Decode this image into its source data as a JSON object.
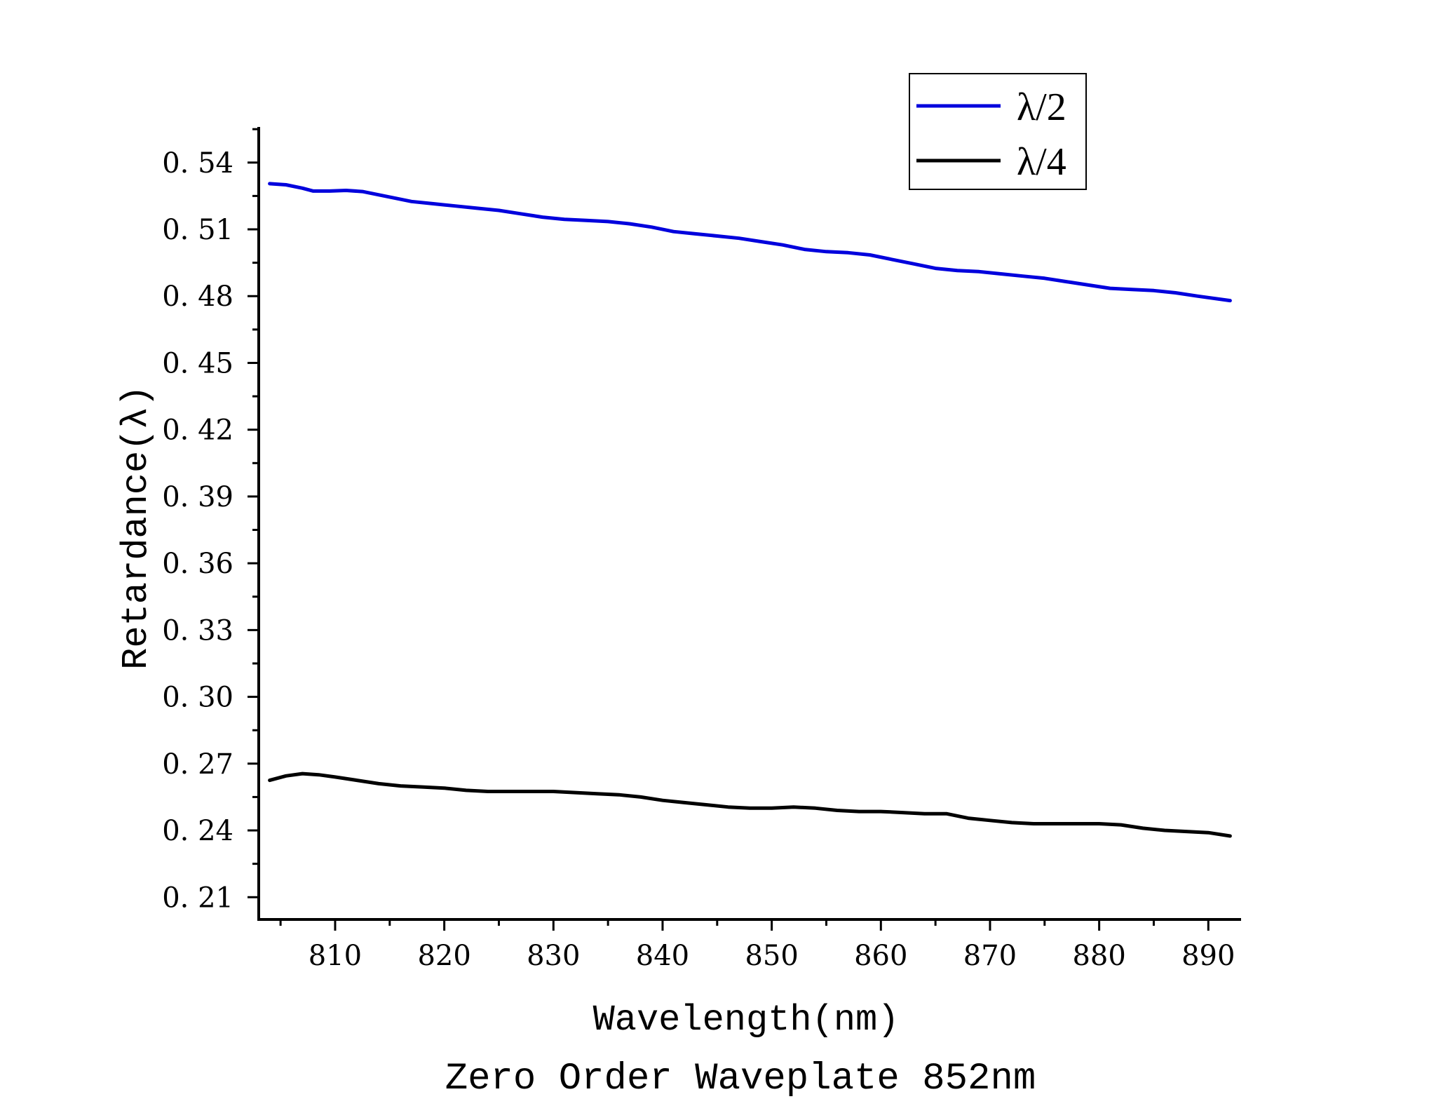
{
  "chart_data": {
    "type": "line",
    "title": "Zero Order Waveplate 852nm",
    "xlabel": "Wavelength(nm)",
    "ylabel": "Retardance(λ)",
    "xlim": [
      803,
      893
    ],
    "ylim": [
      0.2,
      0.556
    ],
    "x_ticks": [
      810,
      820,
      830,
      840,
      850,
      860,
      870,
      880,
      890
    ],
    "y_ticks": [
      0.21,
      0.24,
      0.27,
      0.3,
      0.33,
      0.36,
      0.39,
      0.42,
      0.45,
      0.48,
      0.51,
      0.54
    ],
    "y_tick_labels": [
      "0. 21",
      "0. 24",
      "0. 27",
      "0. 30",
      "0. 33",
      "0. 36",
      "0. 39",
      "0. 42",
      "0. 45",
      "0. 48",
      "0. 51",
      "0. 54"
    ],
    "legend_position": "top-right",
    "series": [
      {
        "name": "λ/2",
        "color": "#0000dd",
        "points": [
          [
            804,
            0.5305
          ],
          [
            805.5,
            0.53
          ],
          [
            807,
            0.5285
          ],
          [
            808,
            0.5272
          ],
          [
            809.5,
            0.5272
          ],
          [
            811,
            0.5275
          ],
          [
            812.5,
            0.527
          ],
          [
            814,
            0.5255
          ],
          [
            815.5,
            0.524
          ],
          [
            817,
            0.5225
          ],
          [
            819,
            0.5215
          ],
          [
            821,
            0.5205
          ],
          [
            823,
            0.5195
          ],
          [
            825,
            0.5185
          ],
          [
            827,
            0.517
          ],
          [
            829,
            0.5155
          ],
          [
            831,
            0.5145
          ],
          [
            833,
            0.514
          ],
          [
            835,
            0.5135
          ],
          [
            837,
            0.5125
          ],
          [
            839,
            0.511
          ],
          [
            841,
            0.509
          ],
          [
            843,
            0.508
          ],
          [
            845,
            0.507
          ],
          [
            847,
            0.506
          ],
          [
            849,
            0.5045
          ],
          [
            851,
            0.503
          ],
          [
            853,
            0.501
          ],
          [
            855,
            0.5
          ],
          [
            857,
            0.4995
          ],
          [
            859,
            0.4985
          ],
          [
            861,
            0.4965
          ],
          [
            863,
            0.4945
          ],
          [
            865,
            0.4925
          ],
          [
            867,
            0.4915
          ],
          [
            869,
            0.491
          ],
          [
            871,
            0.49
          ],
          [
            873,
            0.489
          ],
          [
            875,
            0.488
          ],
          [
            877,
            0.4865
          ],
          [
            879,
            0.485
          ],
          [
            881,
            0.4835
          ],
          [
            883,
            0.483
          ],
          [
            885,
            0.4825
          ],
          [
            887,
            0.4815
          ],
          [
            889,
            0.48
          ],
          [
            892,
            0.478
          ]
        ]
      },
      {
        "name": "λ/4",
        "color": "#000000",
        "points": [
          [
            804,
            0.2625
          ],
          [
            805.5,
            0.2645
          ],
          [
            807,
            0.2655
          ],
          [
            808.5,
            0.265
          ],
          [
            810,
            0.264
          ],
          [
            812,
            0.2625
          ],
          [
            814,
            0.261
          ],
          [
            816,
            0.26
          ],
          [
            818,
            0.2595
          ],
          [
            820,
            0.259
          ],
          [
            822,
            0.258
          ],
          [
            824,
            0.2575
          ],
          [
            826,
            0.2575
          ],
          [
            828,
            0.2575
          ],
          [
            830,
            0.2575
          ],
          [
            832,
            0.257
          ],
          [
            834,
            0.2565
          ],
          [
            836,
            0.256
          ],
          [
            838,
            0.255
          ],
          [
            840,
            0.2535
          ],
          [
            842,
            0.2525
          ],
          [
            844,
            0.2515
          ],
          [
            846,
            0.2505
          ],
          [
            848,
            0.25
          ],
          [
            850,
            0.25
          ],
          [
            852,
            0.2505
          ],
          [
            854,
            0.25
          ],
          [
            856,
            0.249
          ],
          [
            858,
            0.2485
          ],
          [
            860,
            0.2485
          ],
          [
            862,
            0.248
          ],
          [
            864,
            0.2475
          ],
          [
            866,
            0.2475
          ],
          [
            868,
            0.2455
          ],
          [
            870,
            0.2445
          ],
          [
            872,
            0.2435
          ],
          [
            874,
            0.243
          ],
          [
            876,
            0.243
          ],
          [
            878,
            0.243
          ],
          [
            880,
            0.243
          ],
          [
            882,
            0.2425
          ],
          [
            884,
            0.241
          ],
          [
            886,
            0.24
          ],
          [
            888,
            0.2395
          ],
          [
            890,
            0.239
          ],
          [
            892,
            0.2375
          ]
        ]
      }
    ]
  }
}
